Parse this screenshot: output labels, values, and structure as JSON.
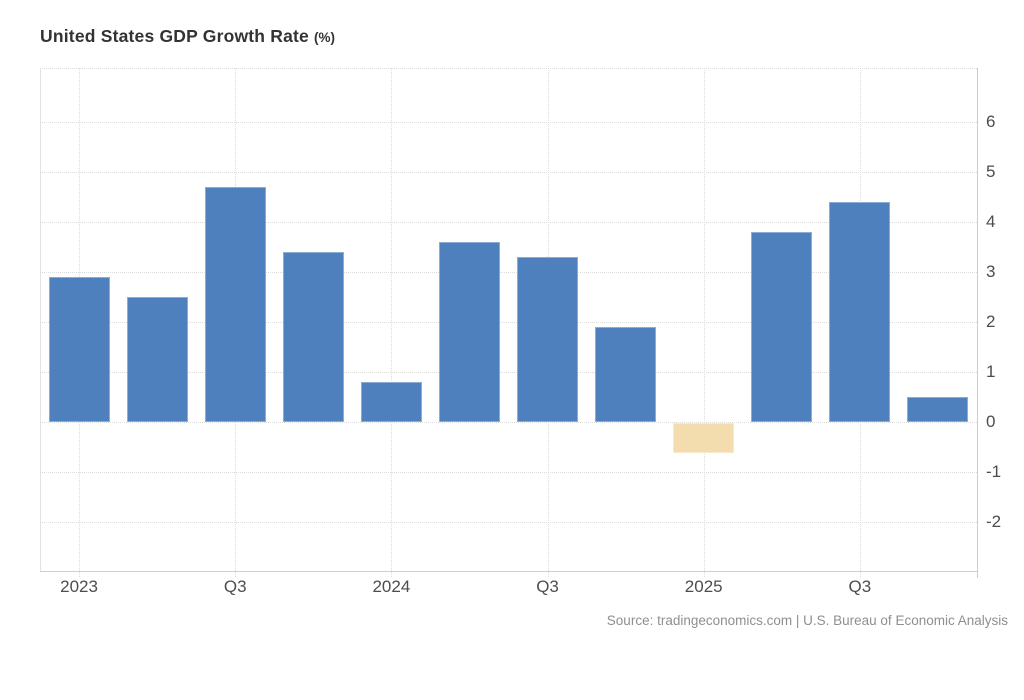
{
  "title": {
    "main": "United States GDP Growth Rate",
    "suffix": "(%)"
  },
  "source_credit": "Source: tradingeconomics.com | U.S. Bureau of Economic Analysis",
  "colors": {
    "bar_positive": "#4e80bd",
    "bar_negative": "#f3ddae",
    "gridline": "#dcdcdc",
    "axis_line": "#cccccc",
    "title_text": "#333333",
    "tick_text": "#4d4d4d",
    "source_text": "#8f8f8f",
    "background": "#ffffff"
  },
  "chart_data": {
    "type": "bar",
    "title": "United States GDP Growth Rate (%)",
    "xlabel": "",
    "ylabel": "",
    "categories": [
      "Q1 2023",
      "Q2 2023",
      "Q3 2023",
      "Q4 2023",
      "Q1 2024",
      "Q2 2024",
      "Q3 2024",
      "Q4 2024",
      "Q1 2025",
      "Q2 2025",
      "Q3 2025",
      "Q4 2025"
    ],
    "values": [
      2.9,
      2.5,
      4.7,
      3.4,
      0.8,
      3.6,
      3.3,
      1.9,
      -0.6,
      3.8,
      4.4,
      0.5
    ],
    "x_tick_labels": [
      {
        "label": "2023",
        "index": 0
      },
      {
        "label": "Q3",
        "index": 2
      },
      {
        "label": "2024",
        "index": 4
      },
      {
        "label": "Q3",
        "index": 6
      },
      {
        "label": "2025",
        "index": 8
      },
      {
        "label": "Q3",
        "index": 10
      }
    ],
    "y_ticks": [
      6,
      5,
      4,
      3,
      2,
      1,
      0,
      -1,
      -2
    ],
    "ylim": [
      -3,
      7.1
    ],
    "grid": "dotted",
    "legend": "none",
    "bar_color_positive": "#4e80bd",
    "bar_color_negative": "#f3ddae"
  }
}
